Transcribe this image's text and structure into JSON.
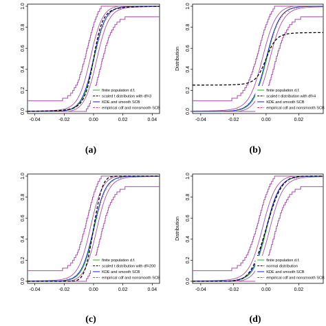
{
  "colors": {
    "finite": "#22c022",
    "scaled_t": "#000000",
    "kde": "#2222ff",
    "band": "#a64ca6",
    "ecdf_band": "#ff3333"
  },
  "chart_data": [
    {
      "type": "line",
      "panel": "(a)",
      "ylabel": "",
      "xlim": [
        -0.045,
        0.045
      ],
      "ylim": [
        -0.02,
        1.02
      ],
      "x_ticks": [
        "-0.04",
        "-0.02",
        "0.00",
        "0.02",
        "0.04"
      ],
      "y_ticks": [
        "0.0",
        "0.2",
        "0.4",
        "0.6",
        "0.8",
        "1.0"
      ],
      "grid": false,
      "legend_position": "bottom-right",
      "legend": [
        "finite population d.f.",
        "scaled t distribution with df=3",
        "KDE and smooth SCB",
        "empirical cdf and nonsmooth SCB"
      ],
      "t_df": 3
    },
    {
      "type": "line",
      "panel": "(b)",
      "ylabel": "Distribution",
      "xlim": [
        -0.045,
        0.035
      ],
      "ylim": [
        -0.02,
        1.02
      ],
      "x_ticks": [
        "-0.04",
        "-0.02",
        "0.00",
        "0.02"
      ],
      "y_ticks": [
        "0.0",
        "0.2",
        "0.4",
        "0.6",
        "0.8",
        "1.0"
      ],
      "grid": false,
      "legend_position": "bottom-right",
      "legend": [
        "finite population d.f.",
        "scaled t distribution with df=4",
        "KDE and smooth SCB",
        "empirical cdf and nonsmooth SCB"
      ],
      "t_df": 4
    },
    {
      "type": "line",
      "panel": "(c)",
      "ylabel": "",
      "xlim": [
        -0.045,
        0.045
      ],
      "ylim": [
        -0.02,
        1.02
      ],
      "x_ticks": [
        "-0.04",
        "-0.02",
        "0.00",
        "0.02",
        "0.04"
      ],
      "y_ticks": [
        "0.0",
        "0.2",
        "0.4",
        "0.6",
        "0.8",
        "1.0"
      ],
      "grid": false,
      "legend_position": "bottom-right",
      "legend": [
        "finite population d.f.",
        "scaled t distribution with df=200",
        "KDE and smooth SCB",
        "empirical cdf and nonsmooth SCB"
      ],
      "t_df": 200
    },
    {
      "type": "line",
      "panel": "(d)",
      "ylabel": "Distribution",
      "xlim": [
        -0.045,
        0.035
      ],
      "ylim": [
        -0.02,
        1.02
      ],
      "x_ticks": [
        "-0.04",
        "-0.02",
        "0.00",
        "0.02"
      ],
      "y_ticks": [
        "0.0",
        "0.2",
        "0.4",
        "0.6",
        "0.8",
        "1.0"
      ],
      "grid": false,
      "legend_position": "bottom-right",
      "legend": [
        "finite population d.f.",
        "normal distribution",
        "KDE and smooth SCB",
        "empirical cdf and nonsmooth SCB"
      ],
      "t_df": 0
    }
  ]
}
